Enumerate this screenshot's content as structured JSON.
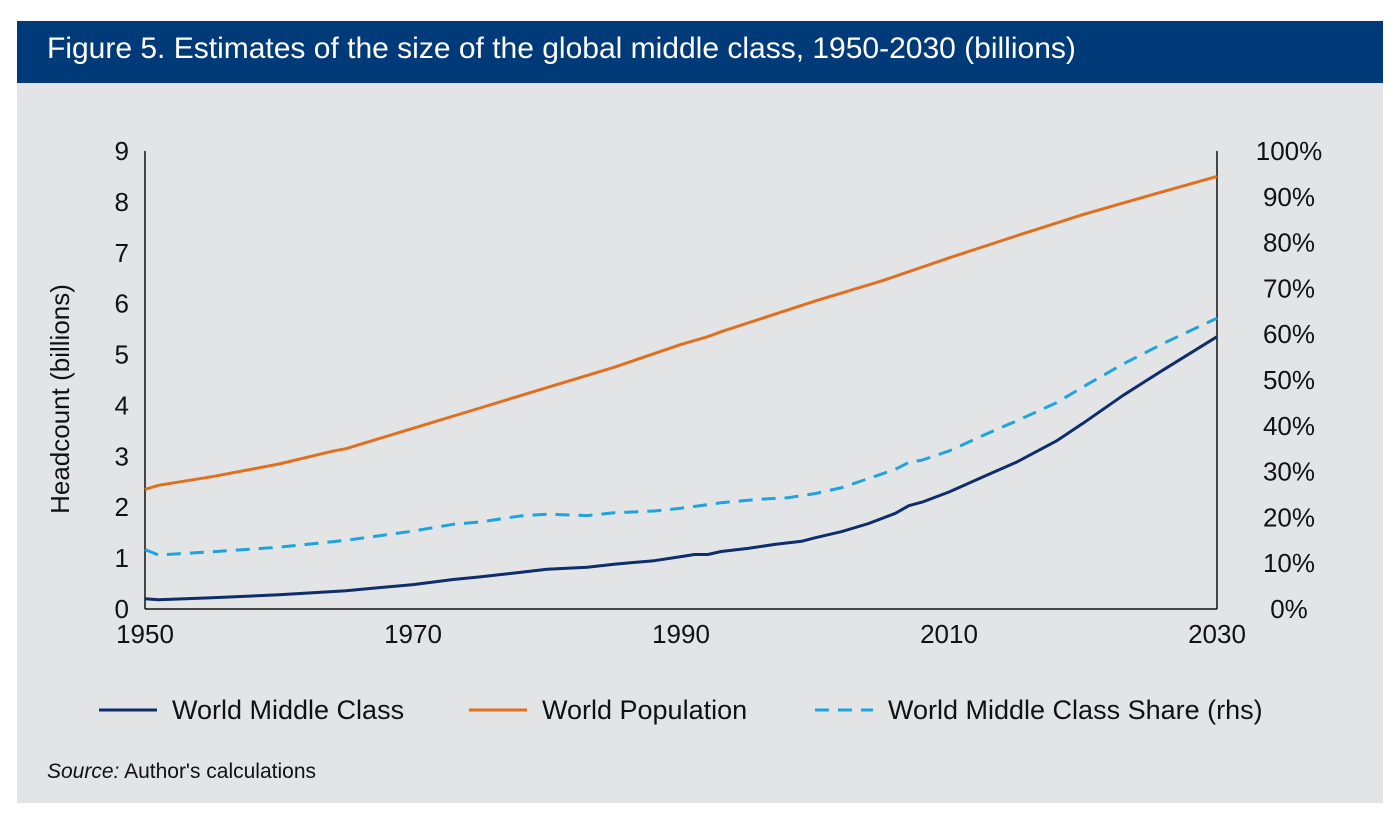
{
  "header": {
    "title": "Figure 5. Estimates of the size of the global middle class, 1950-2030 (billions)"
  },
  "source": {
    "label": "Source:",
    "text": "Author's calculations"
  },
  "colors": {
    "header": "#003a78",
    "middle_class": "#0d2d6b",
    "population": "#e07020",
    "share": "#1ea3dc"
  },
  "chart_data": {
    "type": "line",
    "title": "Figure 5. Estimates of the size of the global middle class, 1950-2030 (billions)",
    "ylabel": "Headcount (billions)",
    "xlabel": "",
    "xlim": [
      1950,
      2030
    ],
    "ylim": [
      0,
      9
    ],
    "y2lim": [
      0,
      100
    ],
    "x_ticks": [
      "1950",
      "1970",
      "1990",
      "2010",
      "2030"
    ],
    "y_ticks": [
      "0",
      "1",
      "2",
      "3",
      "4",
      "5",
      "6",
      "7",
      "8",
      "9"
    ],
    "y2_ticks": [
      "0%",
      "10%",
      "20%",
      "30%",
      "40%",
      "50%",
      "60%",
      "70%",
      "80%",
      "90%",
      "100%"
    ],
    "grid": false,
    "legend_position": "bottom",
    "series": [
      {
        "name": "World Middle Class",
        "axis": "left",
        "style": "solid",
        "points": [
          [
            1950,
            0.2
          ],
          [
            1951,
            0.18
          ],
          [
            1955,
            0.22
          ],
          [
            1960,
            0.28
          ],
          [
            1965,
            0.36
          ],
          [
            1970,
            0.48
          ],
          [
            1973,
            0.58
          ],
          [
            1975,
            0.63
          ],
          [
            1978,
            0.72
          ],
          [
            1980,
            0.78
          ],
          [
            1983,
            0.82
          ],
          [
            1985,
            0.88
          ],
          [
            1988,
            0.95
          ],
          [
            1990,
            1.03
          ],
          [
            1991,
            1.07
          ],
          [
            1992,
            1.07
          ],
          [
            1993,
            1.13
          ],
          [
            1995,
            1.19
          ],
          [
            1997,
            1.27
          ],
          [
            1999,
            1.33
          ],
          [
            2000,
            1.4
          ],
          [
            2002,
            1.52
          ],
          [
            2004,
            1.68
          ],
          [
            2006,
            1.88
          ],
          [
            2007,
            2.03
          ],
          [
            2008,
            2.1
          ],
          [
            2010,
            2.3
          ],
          [
            2013,
            2.65
          ],
          [
            2015,
            2.88
          ],
          [
            2018,
            3.3
          ],
          [
            2020,
            3.65
          ],
          [
            2023,
            4.2
          ],
          [
            2026,
            4.7
          ],
          [
            2030,
            5.35
          ]
        ]
      },
      {
        "name": "World Population",
        "axis": "left",
        "style": "solid",
        "points": [
          [
            1950,
            2.35
          ],
          [
            1951,
            2.43
          ],
          [
            1955,
            2.6
          ],
          [
            1960,
            2.85
          ],
          [
            1964,
            3.1
          ],
          [
            1965,
            3.15
          ],
          [
            1970,
            3.55
          ],
          [
            1975,
            3.95
          ],
          [
            1980,
            4.35
          ],
          [
            1985,
            4.75
          ],
          [
            1990,
            5.2
          ],
          [
            1992,
            5.35
          ],
          [
            1993,
            5.45
          ],
          [
            2000,
            6.05
          ],
          [
            2005,
            6.45
          ],
          [
            2010,
            6.9
          ],
          [
            2015,
            7.33
          ],
          [
            2020,
            7.75
          ],
          [
            2025,
            8.13
          ],
          [
            2030,
            8.5
          ]
        ]
      },
      {
        "name": "World Middle Class Share (rhs)",
        "axis": "right",
        "style": "dashed",
        "points": [
          [
            1950,
            13
          ],
          [
            1951,
            11.8
          ],
          [
            1955,
            12.5
          ],
          [
            1960,
            13.5
          ],
          [
            1965,
            15
          ],
          [
            1970,
            17
          ],
          [
            1973,
            18.5
          ],
          [
            1975,
            19
          ],
          [
            1978,
            20.3
          ],
          [
            1980,
            20.7
          ],
          [
            1983,
            20.4
          ],
          [
            1985,
            21
          ],
          [
            1988,
            21.4
          ],
          [
            1990,
            22
          ],
          [
            1992,
            22.8
          ],
          [
            1993,
            23.2
          ],
          [
            1996,
            24
          ],
          [
            1998,
            24.3
          ],
          [
            2000,
            25.2
          ],
          [
            2002,
            26.5
          ],
          [
            2004,
            28.5
          ],
          [
            2006,
            30.5
          ],
          [
            2007,
            32
          ],
          [
            2008,
            32.5
          ],
          [
            2010,
            34.5
          ],
          [
            2013,
            38.5
          ],
          [
            2015,
            41
          ],
          [
            2018,
            45
          ],
          [
            2020,
            48.5
          ],
          [
            2023,
            53.5
          ],
          [
            2026,
            58
          ],
          [
            2030,
            63.5
          ]
        ]
      }
    ]
  }
}
